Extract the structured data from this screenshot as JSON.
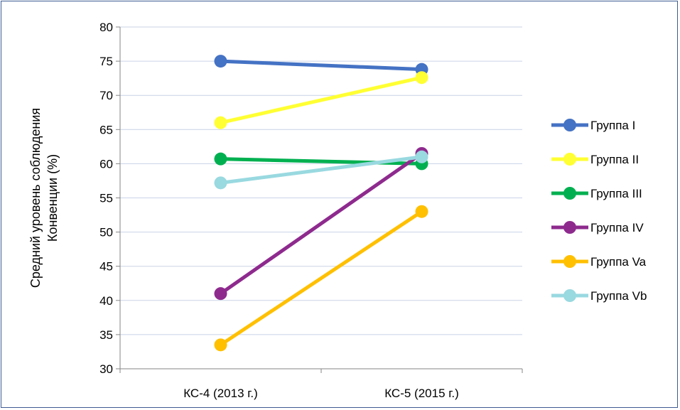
{
  "chart_data": {
    "type": "line",
    "title": "",
    "xlabel": "",
    "ylabel": [
      "Средний уровень соблюдения",
      "Конвенции (%)"
    ],
    "categories": [
      "КС-4 (2013 г.)",
      "КС-5 (2015 г.)"
    ],
    "ylim": [
      30,
      80
    ],
    "yticks": [
      30,
      35,
      40,
      45,
      50,
      55,
      60,
      65,
      70,
      75,
      80
    ],
    "grid": true,
    "legend_position": "right",
    "series": [
      {
        "name": "Группа I",
        "color": "#4472C4",
        "values": [
          75.0,
          73.8
        ]
      },
      {
        "name": "Группа II",
        "color": "#FFFF33",
        "values": [
          66.0,
          72.6
        ]
      },
      {
        "name": "Группа III",
        "color": "#00B050",
        "values": [
          60.7,
          60.0
        ]
      },
      {
        "name": "Группа IV",
        "color": "#8E2A8E",
        "values": [
          41.0,
          61.5
        ]
      },
      {
        "name": "Группа Va",
        "color": "#FFC000",
        "values": [
          33.5,
          53.0
        ]
      },
      {
        "name": "Группа Vb",
        "color": "#99D9E0",
        "values": [
          57.2,
          61.0
        ]
      }
    ]
  }
}
